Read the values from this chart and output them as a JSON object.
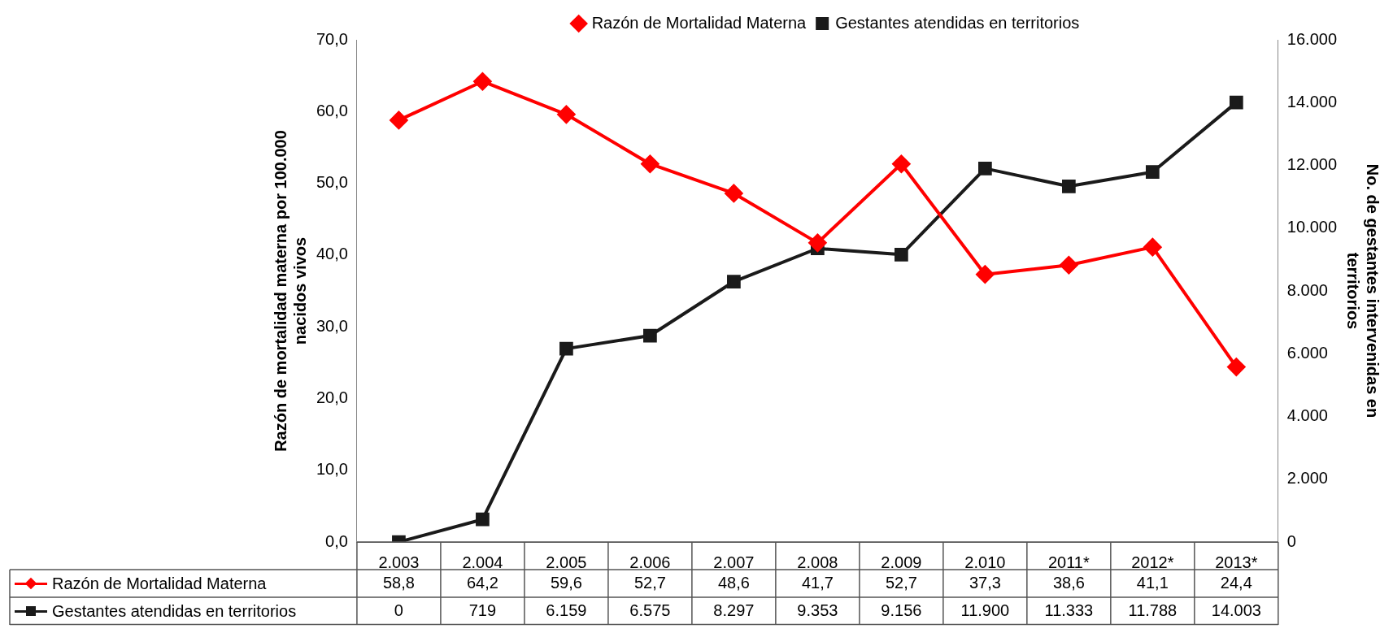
{
  "chart_data": {
    "type": "line",
    "ylabel": "Razón de mortalidad materna por 100.000 nacidos vivos",
    "y2label": "No. de gestantes intervenidas en territorios",
    "legend": "top",
    "categories": [
      "2.003",
      "2.004",
      "2.005",
      "2.006",
      "2.007",
      "2.008",
      "2.009",
      "2.010",
      "2011*",
      "2012*",
      "2013*"
    ],
    "ylim": [
      0,
      70
    ],
    "yticks": [
      {
        "value": 0,
        "label": "0,0"
      },
      {
        "value": 10,
        "label": "10,0"
      },
      {
        "value": 20,
        "label": "20,0"
      },
      {
        "value": 30,
        "label": "30,0"
      },
      {
        "value": 40,
        "label": "40,0"
      },
      {
        "value": 50,
        "label": "50,0"
      },
      {
        "value": 60,
        "label": "60,0"
      },
      {
        "value": 70,
        "label": "70,0"
      }
    ],
    "y2lim": [
      0,
      16000
    ],
    "y2ticks": [
      0,
      {
        "value": 2000,
        "label": "2.000"
      },
      {
        "value": 4000,
        "label": "4.000"
      },
      {
        "value": 6000,
        "label": "6.000"
      },
      {
        "value": 8000,
        "label": "8.000"
      },
      {
        "value": 10000,
        "label": "10.000"
      },
      {
        "value": 12000,
        "label": "12.000"
      },
      {
        "value": 14000,
        "label": "14.000"
      },
      {
        "value": 16000,
        "label": "16.000"
      }
    ],
    "series": [
      {
        "name": "Razón de Mortalidad Materna",
        "color": "#ff0000",
        "marker": "diamond",
        "values": [
          58.8,
          64.2,
          59.6,
          52.7,
          48.6,
          41.7,
          52.7,
          37.3,
          38.6,
          41.1,
          24.4
        ],
        "value_labels": [
          "58,8",
          "64,2",
          "59,6",
          "52,7",
          "48,6",
          "41,7",
          "52,7",
          "37,3",
          "38,6",
          "41,1",
          "24,4"
        ]
      },
      {
        "name": "Gestantes atendidas en territorios",
        "color": "#1a1a1a",
        "marker": "square",
        "axis": "y2",
        "values": [
          0,
          719,
          6159,
          6575,
          8297,
          9353,
          9156,
          11900,
          11333,
          11788,
          14003
        ],
        "value_labels": [
          "0",
          "719",
          "6.159",
          "6.575",
          "8.297",
          "9.353",
          "9.156",
          "11.900",
          "11.333",
          "11.788",
          "14.003"
        ]
      }
    ]
  }
}
